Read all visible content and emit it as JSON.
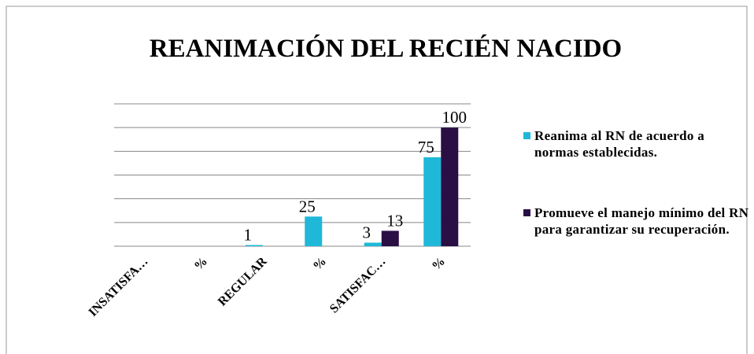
{
  "chart_data": {
    "type": "bar",
    "title": "REANIMACIÓN  DEL RECIÉN NACIDO",
    "categories": [
      "INSATISFA…",
      "%",
      "REGULAR",
      "%",
      "SATISFAC…",
      "%"
    ],
    "series": [
      {
        "name": "Reanima al RN de acuerdo a normas establecidas.",
        "color": "#1fb8d8",
        "values": [
          null,
          null,
          1,
          25,
          3,
          75
        ]
      },
      {
        "name": "Promueve el manejo mínimo del RN para garantizar su recuperación.",
        "color": "#2a0f45",
        "values": [
          null,
          null,
          null,
          null,
          13,
          100
        ]
      }
    ],
    "ylim": [
      0,
      120
    ],
    "yticks": [
      0,
      20,
      40,
      60,
      80,
      100,
      120
    ],
    "grid": true,
    "legend": "right"
  }
}
